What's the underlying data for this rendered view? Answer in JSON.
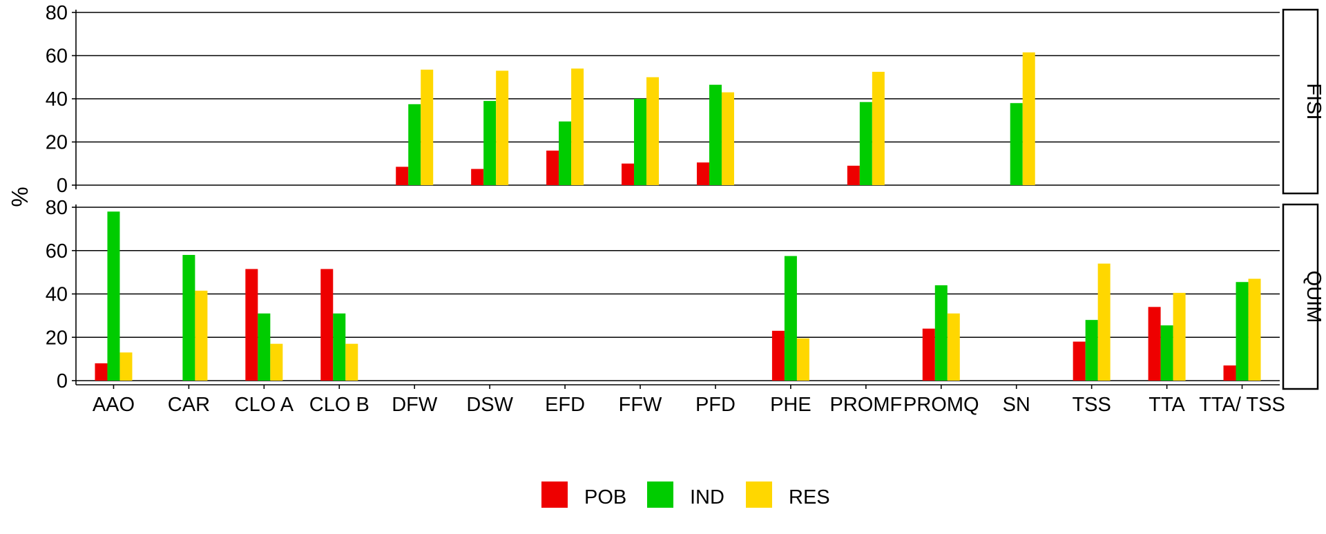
{
  "chart_data": {
    "type": "bar",
    "ylabel": "%",
    "ylim": [
      0,
      80
    ],
    "yticks": [
      "0",
      "20",
      "40",
      "60",
      "80"
    ],
    "grid": "horizontal major",
    "legend_position": "bottom",
    "categories": [
      "AAO",
      "CAR",
      "CLO A",
      "CLO B",
      "DFW",
      "DSW",
      "EFD",
      "FFW",
      "PFD",
      "PHE",
      "PROMF",
      "PROMQ",
      "SN",
      "TSS",
      "TTA",
      "TTA/ TSS"
    ],
    "series_names": [
      "POB",
      "IND",
      "RES"
    ],
    "colors": {
      "POB": "#ee0000",
      "IND": "#00cc00",
      "RES": "#ffd700"
    },
    "panels": [
      {
        "label": "FISI",
        "series": [
          {
            "name": "POB",
            "values": [
              null,
              null,
              null,
              null,
              8.5,
              7.5,
              16,
              10,
              10.5,
              null,
              9,
              null,
              null,
              null,
              null,
              null
            ]
          },
          {
            "name": "IND",
            "values": [
              null,
              null,
              null,
              null,
              37.5,
              39,
              29.5,
              40,
              46.5,
              null,
              38.5,
              null,
              38,
              null,
              null,
              null
            ]
          },
          {
            "name": "RES",
            "values": [
              null,
              null,
              null,
              null,
              53.5,
              53,
              54,
              50,
              43,
              null,
              52.5,
              null,
              61.5,
              null,
              null,
              null
            ]
          }
        ]
      },
      {
        "label": "QUIM",
        "series": [
          {
            "name": "POB",
            "values": [
              8,
              null,
              51.5,
              51.5,
              null,
              null,
              null,
              null,
              null,
              23,
              null,
              24,
              null,
              18,
              34,
              7
            ]
          },
          {
            "name": "IND",
            "values": [
              78,
              58,
              31,
              31,
              null,
              null,
              null,
              null,
              null,
              57.5,
              null,
              44,
              null,
              28,
              25.5,
              45.5
            ]
          },
          {
            "name": "RES",
            "values": [
              13,
              41.5,
              17,
              17,
              null,
              null,
              null,
              null,
              null,
              19.5,
              null,
              31,
              null,
              54,
              40.5,
              47
            ]
          }
        ]
      }
    ]
  }
}
